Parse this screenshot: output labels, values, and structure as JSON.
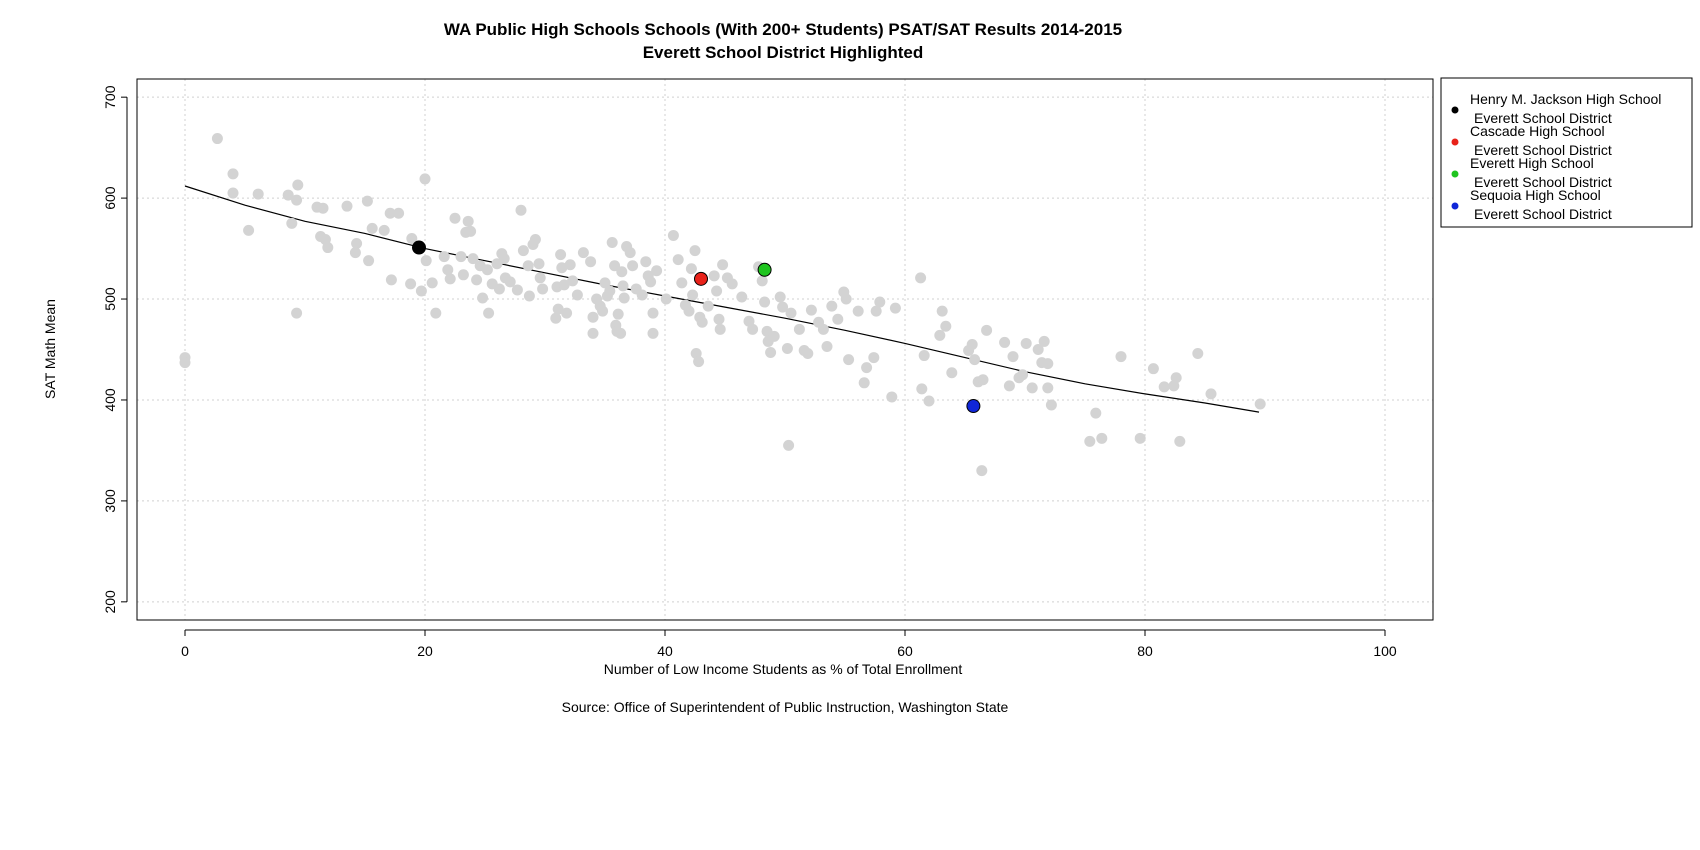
{
  "chart_data": {
    "type": "scatter",
    "title": "WA Public High Schools Schools (With 200+ Students) PSAT/SAT Results 2014-2015",
    "subtitle": "Everett School District Highlighted",
    "xlabel": "Number of Low Income Students as % of Total Enrollment",
    "ylabel": "SAT Math Mean",
    "source": "Source: Office of Superintendent of Public Instruction, Washington State",
    "xlim": [
      -4,
      104
    ],
    "ylim": [
      182,
      718
    ],
    "x_ticks": [
      0,
      20,
      40,
      60,
      80,
      100
    ],
    "y_ticks": [
      200,
      300,
      400,
      500,
      600,
      700
    ],
    "grid": true,
    "legend_position": "top-right, outside plot",
    "background_color": "#d3d3d3",
    "trend_line_color": "#000000",
    "trend_line": [
      [
        0,
        612
      ],
      [
        5,
        593
      ],
      [
        10,
        577
      ],
      [
        15,
        565
      ],
      [
        20,
        550
      ],
      [
        25,
        538
      ],
      [
        30,
        526
      ],
      [
        35,
        514
      ],
      [
        40,
        503
      ],
      [
        45,
        492
      ],
      [
        50,
        481
      ],
      [
        55,
        469
      ],
      [
        60,
        456
      ],
      [
        65,
        442
      ],
      [
        70,
        428
      ],
      [
        75,
        416
      ],
      [
        80,
        406
      ],
      [
        85,
        397
      ],
      [
        89.5,
        388
      ]
    ],
    "background_points": [
      [
        0,
        442
      ],
      [
        0,
        437
      ],
      [
        2.7,
        659
      ],
      [
        4,
        624
      ],
      [
        4,
        605
      ],
      [
        5.3,
        568
      ],
      [
        6.1,
        604
      ],
      [
        8.6,
        603
      ],
      [
        8.9,
        575
      ],
      [
        9.3,
        598
      ],
      [
        9.4,
        613
      ],
      [
        9.3,
        486
      ],
      [
        11,
        591
      ],
      [
        11.3,
        562
      ],
      [
        11.5,
        590
      ],
      [
        11.7,
        559
      ],
      [
        11.9,
        551
      ],
      [
        13.5,
        592
      ],
      [
        14.3,
        555
      ],
      [
        14.2,
        546
      ],
      [
        15.2,
        597
      ],
      [
        15.3,
        538
      ],
      [
        15.6,
        570
      ],
      [
        16.6,
        568
      ],
      [
        17.1,
        585
      ],
      [
        17.2,
        519
      ],
      [
        17.8,
        585
      ],
      [
        18.8,
        515
      ],
      [
        18.9,
        560
      ],
      [
        19.7,
        508
      ],
      [
        20.1,
        538
      ],
      [
        20,
        619
      ],
      [
        20.6,
        516
      ],
      [
        20.9,
        486
      ],
      [
        21.6,
        542
      ],
      [
        21.9,
        529
      ],
      [
        22.1,
        520
      ],
      [
        22.5,
        580
      ],
      [
        23,
        542
      ],
      [
        23.2,
        524
      ],
      [
        23.4,
        566
      ],
      [
        23.6,
        577
      ],
      [
        23.8,
        567
      ],
      [
        24,
        540
      ],
      [
        24.3,
        519
      ],
      [
        24.6,
        533
      ],
      [
        24.8,
        501
      ],
      [
        25.2,
        529
      ],
      [
        25.3,
        486
      ],
      [
        25.6,
        515
      ],
      [
        26,
        535
      ],
      [
        26.2,
        510
      ],
      [
        26.4,
        545
      ],
      [
        26.6,
        540
      ],
      [
        26.7,
        521
      ],
      [
        27.1,
        517
      ],
      [
        27.7,
        509
      ],
      [
        28,
        588
      ],
      [
        28.2,
        548
      ],
      [
        28.6,
        533
      ],
      [
        28.7,
        503
      ],
      [
        29,
        554
      ],
      [
        29.2,
        559
      ],
      [
        29.5,
        535
      ],
      [
        29.6,
        521
      ],
      [
        29.8,
        510
      ],
      [
        30.9,
        481
      ],
      [
        31,
        512
      ],
      [
        31.1,
        490
      ],
      [
        31.3,
        544
      ],
      [
        31.4,
        531
      ],
      [
        31.6,
        514
      ],
      [
        31.8,
        486
      ],
      [
        32.1,
        534
      ],
      [
        32.3,
        518
      ],
      [
        32.7,
        504
      ],
      [
        33.2,
        546
      ],
      [
        33.8,
        537
      ],
      [
        34,
        482
      ],
      [
        34,
        466
      ],
      [
        34.3,
        500
      ],
      [
        34.6,
        493
      ],
      [
        34.8,
        488
      ],
      [
        35,
        516
      ],
      [
        35.2,
        503
      ],
      [
        35.4,
        508
      ],
      [
        35.6,
        556
      ],
      [
        35.8,
        533
      ],
      [
        35.9,
        474
      ],
      [
        36,
        468
      ],
      [
        36.1,
        485
      ],
      [
        36.3,
        466
      ],
      [
        36.4,
        527
      ],
      [
        36.5,
        513
      ],
      [
        36.6,
        501
      ],
      [
        36.8,
        552
      ],
      [
        37.1,
        546
      ],
      [
        37.3,
        533
      ],
      [
        37.6,
        510
      ],
      [
        38.1,
        504
      ],
      [
        38.4,
        537
      ],
      [
        38.6,
        523
      ],
      [
        38.8,
        517
      ],
      [
        39,
        466
      ],
      [
        39,
        486
      ],
      [
        39.3,
        528
      ],
      [
        40.1,
        500
      ],
      [
        40.7,
        563
      ],
      [
        41.1,
        539
      ],
      [
        41.4,
        516
      ],
      [
        41.7,
        494
      ],
      [
        42,
        488
      ],
      [
        42.2,
        530
      ],
      [
        42.3,
        504
      ],
      [
        42.5,
        548
      ],
      [
        42.6,
        446
      ],
      [
        42.8,
        438
      ],
      [
        42.9,
        482
      ],
      [
        43.1,
        477
      ],
      [
        43.6,
        493
      ],
      [
        44.1,
        523
      ],
      [
        44.3,
        508
      ],
      [
        44.5,
        480
      ],
      [
        44.6,
        470
      ],
      [
        44.8,
        534
      ],
      [
        45.2,
        521
      ],
      [
        45.6,
        515
      ],
      [
        46.4,
        502
      ],
      [
        47,
        478
      ],
      [
        47.3,
        470
      ],
      [
        47.8,
        532
      ],
      [
        48.1,
        518
      ],
      [
        48.3,
        497
      ],
      [
        48.5,
        468
      ],
      [
        48.6,
        458
      ],
      [
        48.8,
        447
      ],
      [
        49.1,
        463
      ],
      [
        49.6,
        502
      ],
      [
        49.8,
        492
      ],
      [
        50.2,
        451
      ],
      [
        50.3,
        355
      ],
      [
        50.5,
        486
      ],
      [
        51.2,
        470
      ],
      [
        51.6,
        449
      ],
      [
        51.9,
        446
      ],
      [
        52.2,
        489
      ],
      [
        52.8,
        477
      ],
      [
        53.2,
        470
      ],
      [
        53.5,
        453
      ],
      [
        53.9,
        493
      ],
      [
        54.4,
        480
      ],
      [
        54.9,
        507
      ],
      [
        55.1,
        500
      ],
      [
        55.3,
        440
      ],
      [
        56.1,
        488
      ],
      [
        56.6,
        417
      ],
      [
        56.8,
        432
      ],
      [
        57.4,
        442
      ],
      [
        57.6,
        488
      ],
      [
        57.9,
        497
      ],
      [
        58.9,
        403
      ],
      [
        59.2,
        491
      ],
      [
        61.3,
        521
      ],
      [
        61.4,
        411
      ],
      [
        61.6,
        444
      ],
      [
        62,
        399
      ],
      [
        62.9,
        464
      ],
      [
        63.1,
        488
      ],
      [
        63.4,
        473
      ],
      [
        63.9,
        427
      ],
      [
        65.3,
        449
      ],
      [
        65.6,
        455
      ],
      [
        65.8,
        440
      ],
      [
        66.1,
        418
      ],
      [
        66.4,
        330
      ],
      [
        66.5,
        420
      ],
      [
        66.8,
        469
      ],
      [
        68.3,
        457
      ],
      [
        68.7,
        414
      ],
      [
        69,
        443
      ],
      [
        69.5,
        422
      ],
      [
        69.8,
        425
      ],
      [
        70.1,
        456
      ],
      [
        70.6,
        412
      ],
      [
        71.1,
        450
      ],
      [
        71.4,
        437
      ],
      [
        71.6,
        458
      ],
      [
        71.9,
        412
      ],
      [
        71.9,
        436
      ],
      [
        72.2,
        395
      ],
      [
        75.4,
        359
      ],
      [
        75.9,
        387
      ],
      [
        76.4,
        362
      ],
      [
        78,
        443
      ],
      [
        79.6,
        362
      ],
      [
        80.7,
        431
      ],
      [
        81.6,
        413
      ],
      [
        82.4,
        414
      ],
      [
        82.6,
        422
      ],
      [
        82.9,
        359
      ],
      [
        84.4,
        446
      ],
      [
        85.5,
        406
      ],
      [
        89.6,
        396
      ]
    ],
    "highlighted": [
      {
        "name": "Henry M. Jackson High School",
        "district": "Everett School District",
        "x": 19.5,
        "y": 551,
        "color": "#000000"
      },
      {
        "name": "Cascade High School",
        "district": "Everett School District",
        "x": 43,
        "y": 520,
        "color": "#e8221a"
      },
      {
        "name": "Everett High School",
        "district": "Everett School District",
        "x": 48.3,
        "y": 529,
        "color": "#1ec41e"
      },
      {
        "name": "Sequoia High School",
        "district": "Everett School District",
        "x": 65.7,
        "y": 394,
        "color": "#1026d8"
      }
    ]
  }
}
